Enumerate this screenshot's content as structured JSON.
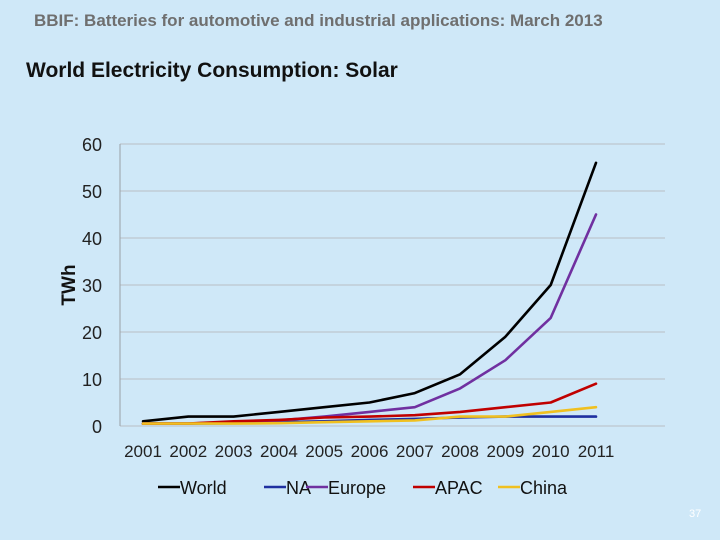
{
  "slide": {
    "header": "BBIF: Batteries for automotive and industrial applications: March 2013",
    "title": "World Electricity Consumption: Solar",
    "page_number": "37"
  },
  "chart_data": {
    "type": "line",
    "title": "World Electricity Consumption: Solar",
    "xlabel": "",
    "ylabel": "TWh",
    "x": [
      "2001",
      "2002",
      "2003",
      "2004",
      "2005",
      "2006",
      "2007",
      "2008",
      "2009",
      "2010",
      "2011"
    ],
    "ylim": [
      0,
      60
    ],
    "yticks": [
      0,
      10,
      20,
      30,
      40,
      50,
      60
    ],
    "grid": true,
    "legend": "bottom",
    "series": [
      {
        "name": "World",
        "color": "#000000",
        "values": [
          1,
          2,
          2,
          3,
          4,
          5,
          7,
          11,
          19,
          30,
          56
        ]
      },
      {
        "name": "NA",
        "color": "#1f2fa0",
        "values": [
          0.5,
          0.5,
          0.6,
          0.8,
          1,
          1.3,
          1.5,
          1.8,
          2,
          2,
          2
        ]
      },
      {
        "name": "Europe",
        "color": "#7030a0",
        "values": [
          0.5,
          0.5,
          0.8,
          1.2,
          2,
          3,
          4,
          8,
          14,
          23,
          45
        ]
      },
      {
        "name": "APAC",
        "color": "#c00000",
        "values": [
          0.5,
          0.5,
          1,
          1.3,
          1.8,
          2,
          2.3,
          3,
          4,
          5,
          9
        ]
      },
      {
        "name": "China",
        "color": "#f0c020",
        "values": [
          0.5,
          0.5,
          0.5,
          0.6,
          0.8,
          1,
          1.2,
          2,
          2,
          3,
          4
        ]
      }
    ]
  }
}
